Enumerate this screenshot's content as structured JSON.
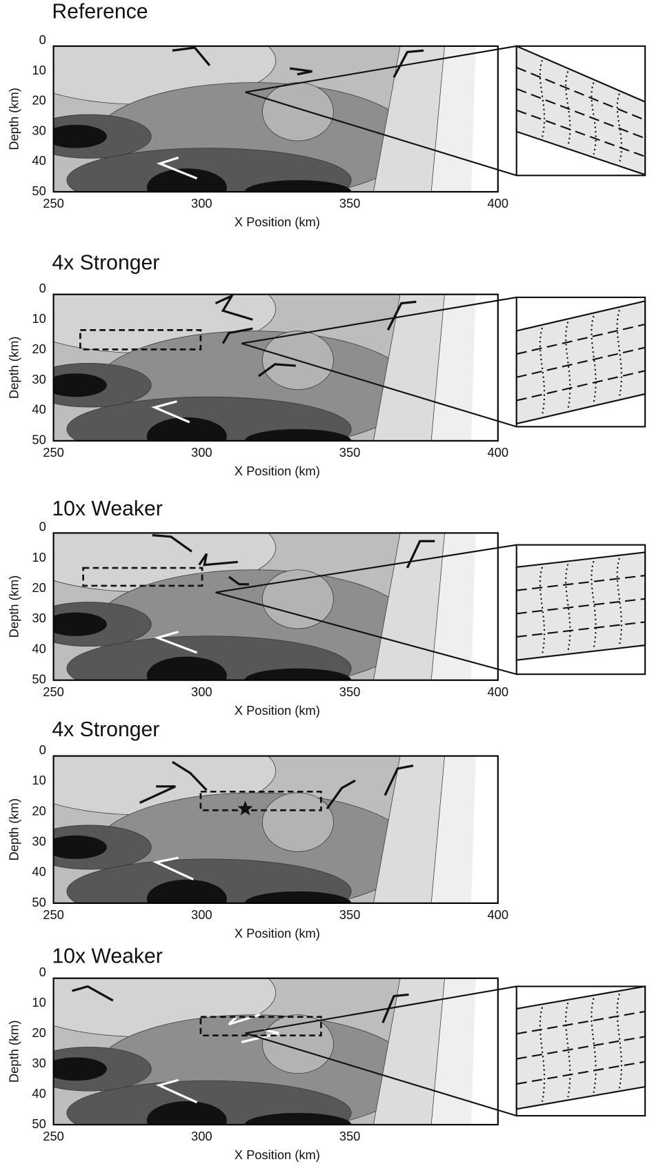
{
  "chart_data": [
    {
      "type": "contour",
      "title": "Reference",
      "xlabel": "X Position (km)",
      "ylabel": "Depth (km)",
      "xlim": [
        250,
        400
      ],
      "ylim": [
        0,
        50
      ],
      "xticks": [
        250,
        300,
        350,
        400
      ],
      "yticks": [
        0,
        10,
        20,
        30,
        40,
        50
      ]
    },
    {
      "type": "contour",
      "title": "4x Stronger",
      "xlabel": "X Position (km)",
      "ylabel": "Depth (km)",
      "xlim": [
        250,
        400
      ],
      "ylim": [
        0,
        50
      ],
      "xticks": [
        250,
        300,
        350,
        400
      ],
      "yticks": [
        0,
        10,
        20,
        30,
        40,
        50
      ]
    },
    {
      "type": "contour",
      "title": "10x Weaker",
      "xlabel": "X Position (km)",
      "ylabel": "Depth (km)",
      "xlim": [
        250,
        400
      ],
      "ylim": [
        0,
        50
      ],
      "xticks": [
        250,
        300,
        350,
        400
      ],
      "yticks": [
        0,
        10,
        20,
        30,
        40,
        50
      ]
    },
    {
      "type": "contour",
      "title": "4x Stronger",
      "xlabel": "X Position (km)",
      "ylabel": "Depth (km)",
      "xlim": [
        250,
        400
      ],
      "ylim": [
        0,
        50
      ],
      "xticks": [
        250,
        300,
        350,
        400
      ],
      "yticks": [
        0,
        10,
        20,
        30,
        40,
        50
      ]
    },
    {
      "type": "contour",
      "title": "10x Weaker",
      "xlabel": "X Position (km)",
      "ylabel": "Depth (km)",
      "xlim": [
        250,
        400
      ],
      "ylim": [
        0,
        50
      ],
      "xticks": [
        250,
        300,
        350
      ],
      "yticks": [
        0,
        10,
        20,
        30,
        40,
        50
      ]
    }
  ]
}
